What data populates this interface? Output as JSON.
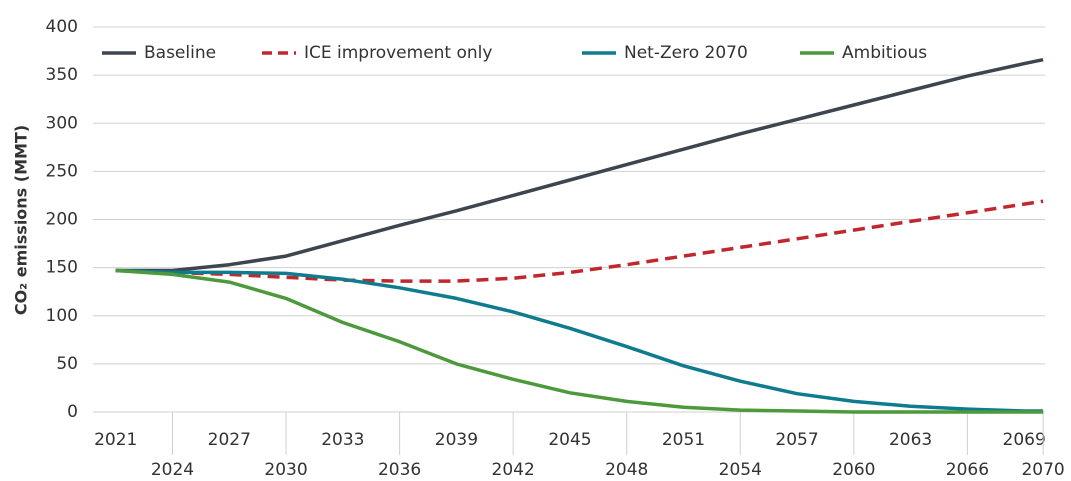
{
  "chart_data": {
    "type": "line",
    "y_label": "CO₂ emissions (MMT)",
    "x": [
      2021,
      2024,
      2027,
      2030,
      2033,
      2036,
      2039,
      2042,
      2045,
      2048,
      2051,
      2054,
      2057,
      2060,
      2063,
      2066,
      2069,
      2070
    ],
    "series": [
      {
        "name": "Baseline",
        "color": "#3d4550",
        "dashed": false,
        "values": [
          147,
          147,
          153,
          162,
          178,
          194,
          209,
          225,
          241,
          257,
          273,
          289,
          304,
          319,
          334,
          349,
          362,
          366
        ]
      },
      {
        "name": "ICE improvement only",
        "color": "#c0282d",
        "dashed": true,
        "values": [
          147,
          145,
          143,
          140,
          137,
          136,
          136,
          139,
          145,
          153,
          162,
          171,
          180,
          189,
          198,
          207,
          216,
          219
        ]
      },
      {
        "name": "Net-Zero 2070",
        "color": "#0e7c8e",
        "dashed": false,
        "values": [
          147,
          145,
          145,
          144,
          138,
          129,
          118,
          104,
          87,
          68,
          48,
          32,
          19,
          11,
          6,
          3,
          1,
          1
        ]
      },
      {
        "name": "Ambitious",
        "color": "#4c9a3c",
        "dashed": false,
        "values": [
          147,
          143,
          135,
          118,
          93,
          73,
          50,
          34,
          20,
          11,
          5,
          2,
          1,
          0,
          0,
          0,
          0,
          0
        ]
      }
    ],
    "xlim": [
      2019.8,
      2070.1
    ],
    "xticks": [
      2021,
      2024,
      2027,
      2030,
      2033,
      2036,
      2039,
      2042,
      2045,
      2048,
      2051,
      2054,
      2057,
      2060,
      2063,
      2066,
      2069,
      2070
    ],
    "ylim": [
      0,
      400
    ],
    "yticks": [
      0,
      50,
      100,
      150,
      200,
      250,
      300,
      350,
      400
    ],
    "grid": true,
    "legend": "top"
  }
}
